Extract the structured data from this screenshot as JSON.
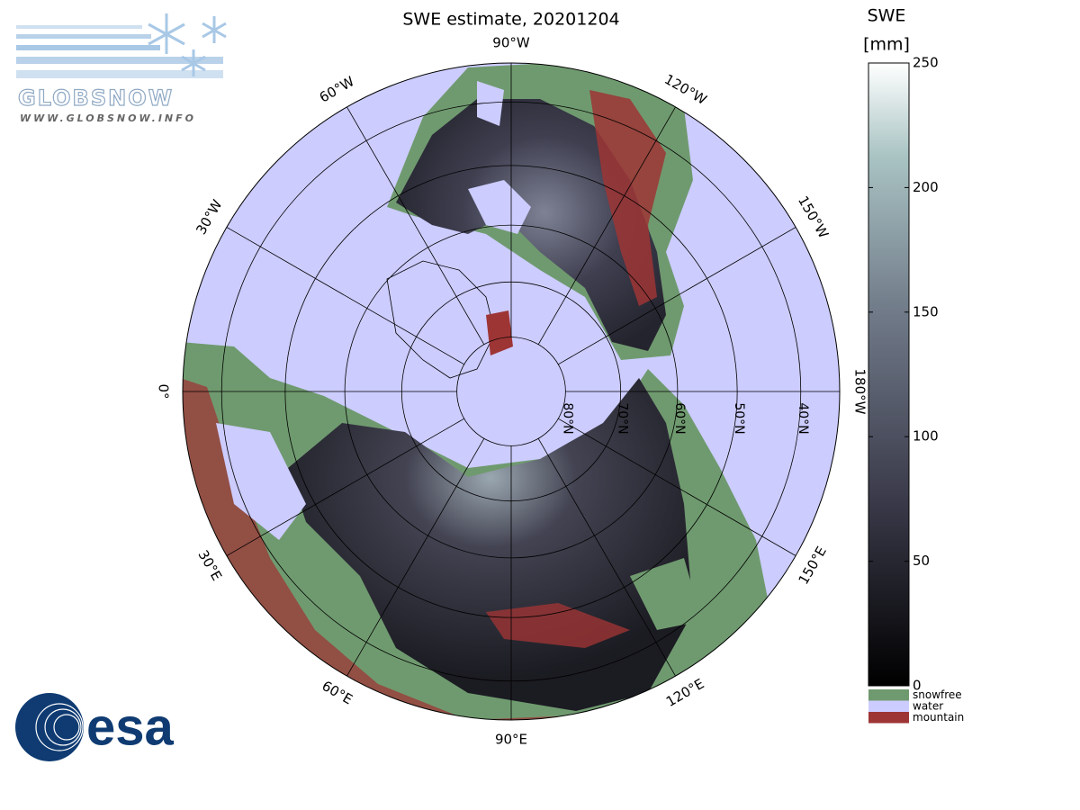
{
  "map": {
    "title": "SWE estimate, 20201204",
    "longitude_labels": [
      {
        "value": -90,
        "label": "90°W"
      },
      {
        "value": -120,
        "label": "120°W"
      },
      {
        "value": -150,
        "label": "150°W"
      },
      {
        "value": 180,
        "label": "180°W"
      },
      {
        "value": 150,
        "label": "150°E"
      },
      {
        "value": 120,
        "label": "120°E"
      },
      {
        "value": 90,
        "label": "90°E"
      },
      {
        "value": 60,
        "label": "60°E"
      },
      {
        "value": 30,
        "label": "30°E"
      },
      {
        "value": 0,
        "label": "0°"
      },
      {
        "value": -30,
        "label": "30°W"
      },
      {
        "value": -60,
        "label": "60°W"
      }
    ],
    "latitude_labels": [
      {
        "value": 80,
        "label": "80°N"
      },
      {
        "value": 70,
        "label": "70°N"
      },
      {
        "value": 60,
        "label": "60°N"
      },
      {
        "value": 50,
        "label": "50°N"
      },
      {
        "value": 40,
        "label": "40°N"
      }
    ]
  },
  "colorbar": {
    "label": "SWE",
    "unit": "[mm]",
    "lim": [
      0,
      250
    ],
    "ticks": [
      0,
      50,
      100,
      150,
      200,
      250
    ]
  },
  "legend": [
    {
      "name": "snowfree",
      "color": "#6f9a6f"
    },
    {
      "name": "water",
      "color": "#ccccff"
    },
    {
      "name": "mountain",
      "color": "#9e3535"
    }
  ],
  "logos": {
    "globsnow": "GLOBSNOW",
    "url": "WWW.GLOBSNOW.INFO",
    "esa": "esa"
  }
}
